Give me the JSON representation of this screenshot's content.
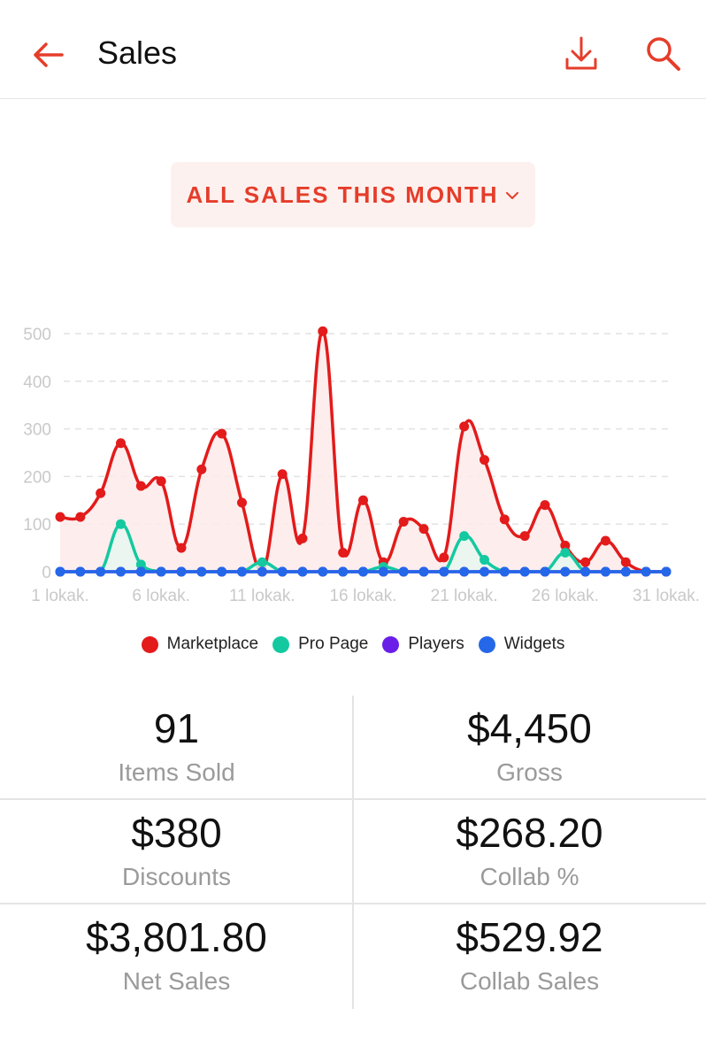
{
  "header": {
    "title": "Sales",
    "accent": "#e53d2a"
  },
  "filter": {
    "label": "ALL SALES THIS MONTH"
  },
  "chart_data": {
    "type": "line",
    "title": "",
    "xlabel": "",
    "ylabel": "",
    "x": [
      1,
      2,
      3,
      4,
      5,
      6,
      7,
      8,
      9,
      10,
      11,
      12,
      13,
      14,
      15,
      16,
      17,
      18,
      19,
      20,
      21,
      22,
      23,
      24,
      25,
      26,
      27,
      28,
      29,
      30,
      31
    ],
    "x_tick_labels": [
      "1 lokak.",
      "6 lokak.",
      "11 lokak.",
      "16 lokak.",
      "21 lokak.",
      "26 lokak.",
      "31 lokak."
    ],
    "x_tick_positions": [
      1,
      6,
      11,
      16,
      21,
      26,
      31
    ],
    "y_ticks": [
      0,
      100,
      200,
      300,
      400,
      500
    ],
    "ylim": [
      0,
      500
    ],
    "grid": true,
    "legend_position": "bottom",
    "series": [
      {
        "name": "Marketplace",
        "color": "#e31b1b",
        "fill": "#fdeaea",
        "values": [
          115,
          115,
          165,
          270,
          180,
          190,
          50,
          215,
          290,
          145,
          0,
          205,
          70,
          505,
          40,
          150,
          20,
          105,
          90,
          30,
          305,
          235,
          110,
          75,
          140,
          55,
          20,
          65,
          20,
          0,
          0
        ]
      },
      {
        "name": "Pro Page",
        "color": "#14c9a0",
        "fill": "#e6f7ef",
        "values": [
          0,
          0,
          0,
          100,
          15,
          0,
          0,
          0,
          0,
          0,
          20,
          0,
          0,
          0,
          0,
          0,
          10,
          0,
          0,
          0,
          75,
          25,
          0,
          0,
          0,
          40,
          0,
          0,
          0,
          0,
          0
        ]
      },
      {
        "name": "Players",
        "color": "#6a1ee8",
        "values": [
          0,
          0,
          0,
          0,
          0,
          0,
          0,
          0,
          0,
          0,
          0,
          0,
          0,
          0,
          0,
          0,
          0,
          0,
          0,
          0,
          0,
          0,
          0,
          0,
          0,
          0,
          0,
          0,
          0,
          0,
          0
        ]
      },
      {
        "name": "Widgets",
        "color": "#2567e9",
        "values": [
          0,
          0,
          0,
          0,
          0,
          0,
          0,
          0,
          0,
          0,
          0,
          0,
          0,
          0,
          0,
          0,
          0,
          0,
          0,
          0,
          0,
          0,
          0,
          0,
          0,
          0,
          0,
          0,
          0,
          0,
          0
        ]
      }
    ]
  },
  "stats": {
    "items_sold": {
      "value": "91",
      "label": "Items Sold"
    },
    "gross": {
      "value": "$4,450",
      "label": "Gross"
    },
    "discounts": {
      "value": "$380",
      "label": "Discounts"
    },
    "collab_pct": {
      "value": "$268.20",
      "label": "Collab %"
    },
    "net_sales": {
      "value": "$3,801.80",
      "label": "Net Sales"
    },
    "collab_sales": {
      "value": "$529.92",
      "label": "Collab Sales"
    }
  }
}
